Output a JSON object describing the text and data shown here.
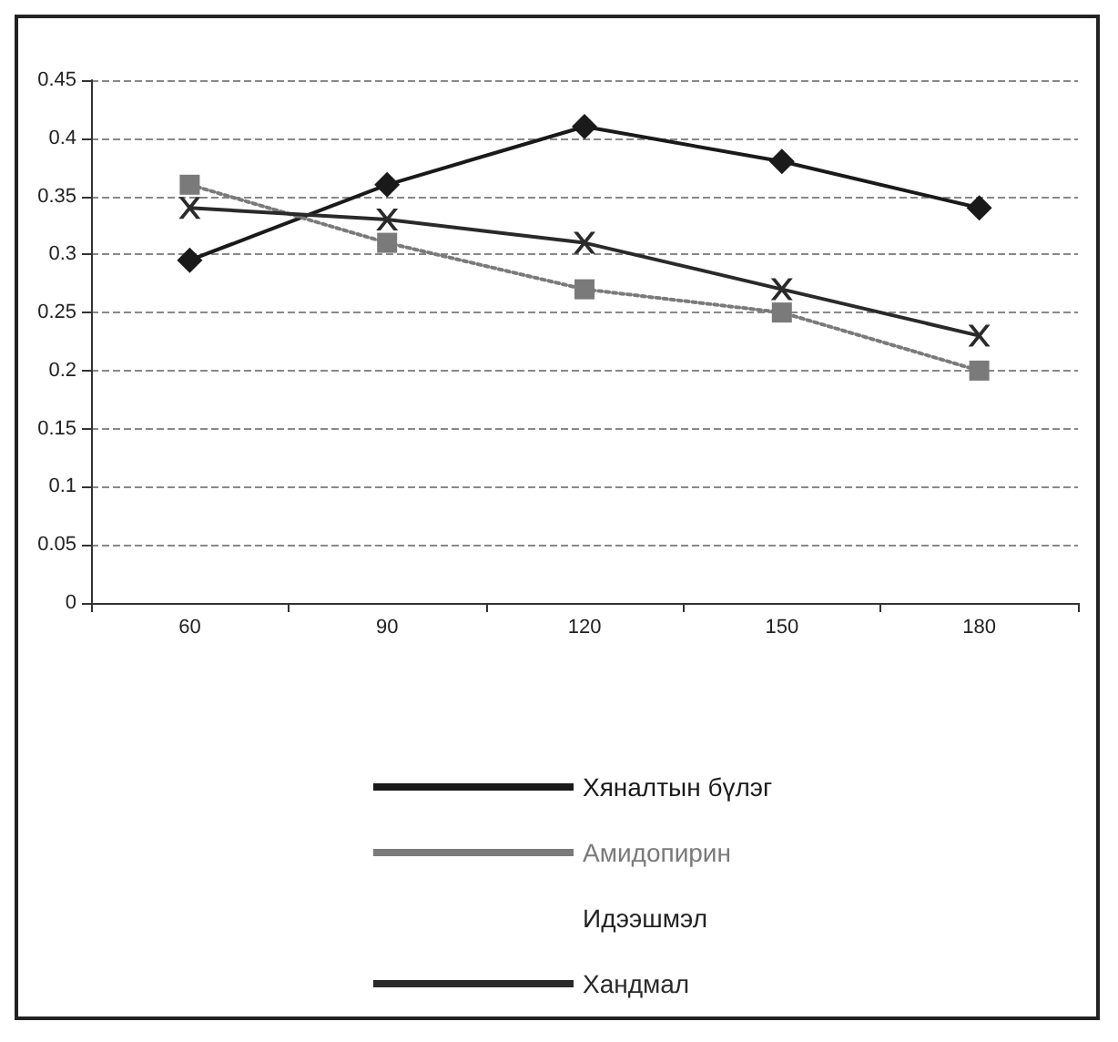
{
  "chart_data": {
    "type": "line",
    "categories": [
      "60",
      "90",
      "120",
      "150",
      "180"
    ],
    "series": [
      {
        "name": "Хяналтын бүлэг",
        "color": "#1a1a1a",
        "marker": "diamond",
        "line_style": "solid",
        "values": [
          0.295,
          0.36,
          0.41,
          0.38,
          0.34
        ]
      },
      {
        "name": "Амидопирин",
        "color": "#7a7a7a",
        "marker": "square",
        "line_style": "dotted",
        "values": [
          0.36,
          0.31,
          0.27,
          0.25,
          0.2
        ]
      },
      {
        "name": "Идээшмэл",
        "marker": "none",
        "values": [
          null,
          null,
          null,
          null,
          null
        ]
      },
      {
        "name": "Хандмал",
        "color": "#2a2a2a",
        "marker": "cross",
        "line_style": "solid",
        "values": [
          0.34,
          0.33,
          0.31,
          0.27,
          0.23
        ]
      }
    ],
    "ylim": [
      0,
      0.45
    ],
    "yticks": [
      0,
      0.05,
      0.1,
      0.15,
      0.2,
      0.25,
      0.3,
      0.35,
      0.4,
      0.45
    ],
    "grid": "y",
    "legend": "bottom"
  }
}
